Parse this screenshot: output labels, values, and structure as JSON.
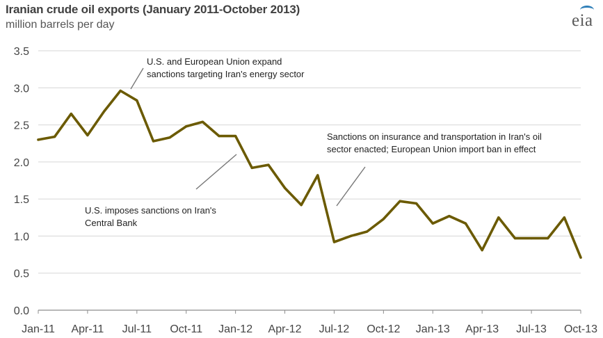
{
  "chart_data": {
    "type": "line",
    "title": "Iranian crude oil exports (January 2011-October 2013)",
    "ylabel": "million barrels per day",
    "xlabel": "",
    "ylim": [
      0,
      3.5
    ],
    "y_ticks": [
      "0.0",
      "0.5",
      "1.0",
      "1.5",
      "2.0",
      "2.5",
      "3.0",
      "3.5"
    ],
    "x_tick_labels": [
      "Jan-11",
      "Apr-11",
      "Jul-11",
      "Oct-11",
      "Jan-12",
      "Apr-12",
      "Jul-12",
      "Oct-12",
      "Jan-13",
      "Apr-13",
      "Jul-13",
      "Oct-13"
    ],
    "grid": true,
    "legend": "none",
    "line_color": "#6b5a00",
    "series": [
      {
        "x": [
          "Jan-11",
          "Feb-11",
          "Mar-11",
          "Apr-11",
          "May-11",
          "Jun-11",
          "Jul-11",
          "Aug-11",
          "Sep-11",
          "Oct-11",
          "Nov-11",
          "Dec-11",
          "Jan-12",
          "Feb-12",
          "Mar-12",
          "Apr-12",
          "May-12",
          "Jun-12",
          "Jul-12",
          "Aug-12",
          "Sep-12",
          "Oct-12",
          "Nov-12",
          "Dec-12",
          "Jan-13",
          "Feb-13",
          "Mar-13",
          "Apr-13",
          "May-13",
          "Jun-13",
          "Jul-13",
          "Aug-13",
          "Sep-13",
          "Oct-13"
        ],
        "values": [
          2.3,
          2.34,
          2.65,
          2.36,
          2.68,
          2.96,
          2.83,
          2.28,
          2.33,
          2.48,
          2.54,
          2.35,
          2.35,
          1.92,
          1.96,
          1.65,
          1.42,
          1.82,
          0.92,
          1.0,
          1.06,
          1.23,
          1.47,
          1.44,
          1.17,
          1.27,
          1.17,
          0.81,
          1.25,
          0.97,
          0.97,
          0.97,
          1.25,
          0.71
        ]
      }
    ],
    "annotations": [
      {
        "lines": [
          "U.S. and European Union expand",
          "sanctions targeting Iran's energy sector"
        ]
      },
      {
        "lines": [
          "U.S. imposes sanctions on Iran's",
          "Central Bank"
        ]
      },
      {
        "lines": [
          "Sanctions  on insurance and transportation in Iran's oil",
          "sector enacted; European Union import ban in effect"
        ]
      }
    ]
  },
  "logo": {
    "text": "eia"
  }
}
